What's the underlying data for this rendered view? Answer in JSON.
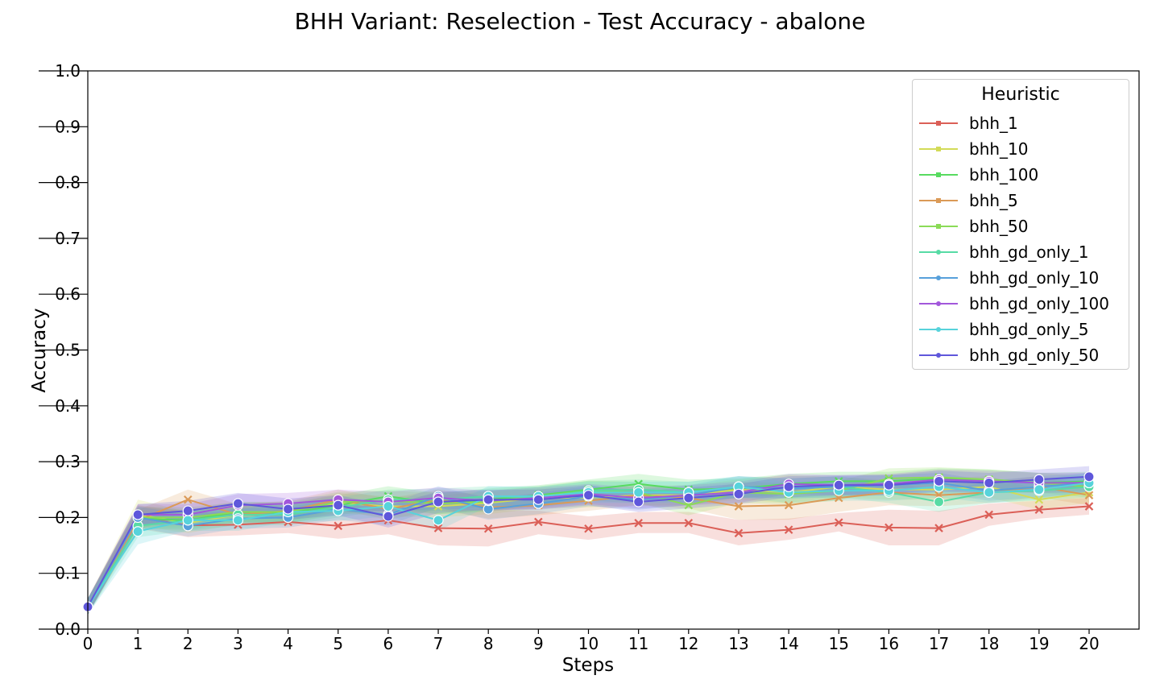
{
  "chart_data": {
    "type": "line",
    "title": "BHH Variant: Reselection - Test Accuracy - abalone",
    "xlabel": "Steps",
    "ylabel": "Accuracy",
    "xlim": [
      0,
      21
    ],
    "ylim": [
      0.0,
      1.0
    ],
    "x": [
      0,
      1,
      2,
      3,
      4,
      5,
      6,
      7,
      8,
      9,
      10,
      11,
      12,
      13,
      14,
      15,
      16,
      17,
      18,
      19,
      20
    ],
    "xticks": [
      "0",
      "1",
      "2",
      "3",
      "4",
      "5",
      "6",
      "7",
      "8",
      "9",
      "10",
      "11",
      "12",
      "13",
      "14",
      "15",
      "16",
      "17",
      "18",
      "19",
      "20"
    ],
    "yticks": [
      "0.0",
      "0.1",
      "0.2",
      "0.3",
      "0.4",
      "0.5",
      "0.6",
      "0.7",
      "0.8",
      "0.9",
      "1.0"
    ],
    "grid": false,
    "legend": {
      "title": "Heuristic",
      "position": "top-right"
    },
    "series": [
      {
        "name": "bhh_1",
        "color": "#db5f57",
        "marker": "x",
        "values": [
          0.04,
          0.2,
          0.186,
          0.187,
          0.192,
          0.185,
          0.195,
          0.181,
          0.18,
          0.192,
          0.18,
          0.19,
          0.19,
          0.172,
          0.178,
          0.191,
          0.182,
          0.181,
          0.205,
          0.214,
          0.22
        ],
        "lower": [
          0.028,
          0.18,
          0.165,
          0.168,
          0.172,
          0.162,
          0.17,
          0.15,
          0.148,
          0.17,
          0.16,
          0.172,
          0.172,
          0.15,
          0.16,
          0.175,
          0.15,
          0.15,
          0.185,
          0.198,
          0.205
        ],
        "upper": [
          0.055,
          0.222,
          0.21,
          0.208,
          0.215,
          0.21,
          0.218,
          0.214,
          0.214,
          0.212,
          0.202,
          0.21,
          0.21,
          0.196,
          0.198,
          0.208,
          0.214,
          0.212,
          0.225,
          0.23,
          0.235
        ]
      },
      {
        "name": "bhh_10",
        "color": "#d3db57",
        "marker": "x",
        "values": [
          0.04,
          0.205,
          0.19,
          0.205,
          0.205,
          0.226,
          0.22,
          0.22,
          0.226,
          0.235,
          0.235,
          0.24,
          0.24,
          0.25,
          0.245,
          0.255,
          0.25,
          0.25,
          0.255,
          0.232,
          0.245
        ],
        "lower": [
          0.026,
          0.185,
          0.172,
          0.188,
          0.188,
          0.208,
          0.202,
          0.2,
          0.206,
          0.216,
          0.218,
          0.222,
          0.222,
          0.232,
          0.226,
          0.236,
          0.232,
          0.232,
          0.236,
          0.214,
          0.226
        ],
        "upper": [
          0.055,
          0.232,
          0.21,
          0.222,
          0.222,
          0.244,
          0.238,
          0.24,
          0.246,
          0.252,
          0.252,
          0.258,
          0.258,
          0.268,
          0.276,
          0.272,
          0.268,
          0.27,
          0.274,
          0.25,
          0.264
        ]
      },
      {
        "name": "bhh_100",
        "color": "#57db5f",
        "marker": "x",
        "values": [
          0.04,
          0.198,
          0.195,
          0.21,
          0.208,
          0.222,
          0.238,
          0.225,
          0.232,
          0.24,
          0.25,
          0.26,
          0.25,
          0.252,
          0.26,
          0.265,
          0.265,
          0.27,
          0.268,
          0.262,
          0.265
        ],
        "lower": [
          0.026,
          0.18,
          0.178,
          0.192,
          0.19,
          0.204,
          0.218,
          0.206,
          0.212,
          0.222,
          0.232,
          0.242,
          0.232,
          0.234,
          0.242,
          0.248,
          0.248,
          0.252,
          0.25,
          0.244,
          0.248
        ],
        "upper": [
          0.055,
          0.218,
          0.214,
          0.228,
          0.226,
          0.24,
          0.256,
          0.244,
          0.252,
          0.258,
          0.268,
          0.278,
          0.268,
          0.27,
          0.278,
          0.282,
          0.282,
          0.288,
          0.286,
          0.28,
          0.282
        ]
      },
      {
        "name": "bhh_5",
        "color": "#db9a57",
        "marker": "x",
        "values": [
          0.04,
          0.195,
          0.232,
          0.205,
          0.212,
          0.232,
          0.215,
          0.232,
          0.218,
          0.222,
          0.23,
          0.24,
          0.235,
          0.22,
          0.222,
          0.235,
          0.245,
          0.24,
          0.245,
          0.255,
          0.24
        ],
        "lower": [
          0.026,
          0.176,
          0.212,
          0.186,
          0.194,
          0.214,
          0.196,
          0.214,
          0.198,
          0.204,
          0.212,
          0.222,
          0.216,
          0.196,
          0.196,
          0.21,
          0.222,
          0.22,
          0.226,
          0.236,
          0.222
        ],
        "upper": [
          0.055,
          0.214,
          0.25,
          0.224,
          0.23,
          0.25,
          0.234,
          0.25,
          0.238,
          0.24,
          0.248,
          0.258,
          0.254,
          0.244,
          0.25,
          0.262,
          0.268,
          0.26,
          0.264,
          0.274,
          0.258
        ]
      },
      {
        "name": "bhh_50",
        "color": "#8bdb57",
        "marker": "x",
        "values": [
          0.04,
          0.2,
          0.2,
          0.21,
          0.21,
          0.228,
          0.23,
          0.225,
          0.228,
          0.238,
          0.248,
          0.245,
          0.222,
          0.245,
          0.242,
          0.248,
          0.27,
          0.272,
          0.268,
          0.262,
          0.255
        ],
        "lower": [
          0.026,
          0.182,
          0.182,
          0.192,
          0.192,
          0.21,
          0.212,
          0.206,
          0.21,
          0.22,
          0.23,
          0.226,
          0.204,
          0.226,
          0.224,
          0.23,
          0.252,
          0.254,
          0.25,
          0.244,
          0.236
        ],
        "upper": [
          0.055,
          0.22,
          0.218,
          0.228,
          0.228,
          0.246,
          0.248,
          0.244,
          0.248,
          0.256,
          0.266,
          0.264,
          0.24,
          0.264,
          0.262,
          0.266,
          0.288,
          0.29,
          0.286,
          0.28,
          0.274
        ]
      },
      {
        "name": "bhh_gd_only_1",
        "color": "#57dba5",
        "marker": "o",
        "values": [
          0.04,
          0.185,
          0.195,
          0.205,
          0.205,
          0.218,
          0.232,
          0.232,
          0.238,
          0.236,
          0.248,
          0.25,
          0.245,
          0.255,
          0.252,
          0.255,
          0.245,
          0.228,
          0.245,
          0.248,
          0.255
        ],
        "lower": [
          0.026,
          0.165,
          0.176,
          0.186,
          0.186,
          0.2,
          0.214,
          0.212,
          0.22,
          0.218,
          0.23,
          0.232,
          0.226,
          0.236,
          0.234,
          0.236,
          0.226,
          0.21,
          0.226,
          0.23,
          0.236
        ],
        "upper": [
          0.055,
          0.205,
          0.214,
          0.224,
          0.224,
          0.236,
          0.25,
          0.252,
          0.256,
          0.254,
          0.266,
          0.268,
          0.264,
          0.274,
          0.27,
          0.274,
          0.264,
          0.248,
          0.264,
          0.266,
          0.274
        ]
      },
      {
        "name": "bhh_gd_only_10",
        "color": "#57a0db",
        "marker": "o",
        "values": [
          0.04,
          0.2,
          0.185,
          0.198,
          0.2,
          0.215,
          0.205,
          0.238,
          0.215,
          0.225,
          0.238,
          0.232,
          0.24,
          0.255,
          0.252,
          0.255,
          0.258,
          0.262,
          0.248,
          0.255,
          0.262
        ],
        "lower": [
          0.026,
          0.182,
          0.166,
          0.18,
          0.182,
          0.196,
          0.186,
          0.218,
          0.196,
          0.206,
          0.22,
          0.214,
          0.222,
          0.236,
          0.234,
          0.236,
          0.24,
          0.244,
          0.23,
          0.236,
          0.244
        ],
        "upper": [
          0.055,
          0.22,
          0.204,
          0.216,
          0.218,
          0.234,
          0.224,
          0.256,
          0.234,
          0.244,
          0.256,
          0.25,
          0.258,
          0.274,
          0.27,
          0.274,
          0.276,
          0.28,
          0.266,
          0.274,
          0.28
        ]
      },
      {
        "name": "bhh_gd_only_100",
        "color": "#a257db",
        "marker": "o",
        "values": [
          0.04,
          0.205,
          0.205,
          0.222,
          0.225,
          0.232,
          0.228,
          0.235,
          0.23,
          0.235,
          0.242,
          0.235,
          0.24,
          0.245,
          0.26,
          0.258,
          0.26,
          0.268,
          0.265,
          0.262,
          0.262
        ],
        "lower": [
          0.026,
          0.186,
          0.186,
          0.204,
          0.206,
          0.214,
          0.21,
          0.216,
          0.212,
          0.216,
          0.224,
          0.216,
          0.222,
          0.226,
          0.242,
          0.24,
          0.242,
          0.25,
          0.246,
          0.244,
          0.244
        ],
        "upper": [
          0.055,
          0.224,
          0.224,
          0.242,
          0.244,
          0.25,
          0.246,
          0.254,
          0.248,
          0.254,
          0.26,
          0.254,
          0.258,
          0.264,
          0.278,
          0.276,
          0.278,
          0.286,
          0.284,
          0.28,
          0.28
        ]
      },
      {
        "name": "bhh_gd_only_5",
        "color": "#57d3db",
        "marker": "o",
        "values": [
          0.04,
          0.175,
          0.195,
          0.195,
          0.21,
          0.212,
          0.22,
          0.195,
          0.238,
          0.238,
          0.245,
          0.245,
          0.245,
          0.255,
          0.245,
          0.248,
          0.248,
          0.255,
          0.245,
          0.25,
          0.262
        ],
        "lower": [
          0.026,
          0.152,
          0.176,
          0.176,
          0.192,
          0.194,
          0.202,
          0.176,
          0.22,
          0.22,
          0.226,
          0.226,
          0.226,
          0.236,
          0.226,
          0.23,
          0.23,
          0.236,
          0.226,
          0.232,
          0.244
        ],
        "upper": [
          0.055,
          0.198,
          0.214,
          0.214,
          0.228,
          0.23,
          0.238,
          0.214,
          0.256,
          0.256,
          0.264,
          0.264,
          0.264,
          0.274,
          0.264,
          0.266,
          0.266,
          0.274,
          0.264,
          0.268,
          0.28
        ]
      },
      {
        "name": "bhh_gd_only_50",
        "color": "#5f57db",
        "marker": "o",
        "values": [
          0.04,
          0.205,
          0.212,
          0.225,
          0.215,
          0.222,
          0.202,
          0.228,
          0.232,
          0.232,
          0.24,
          0.228,
          0.235,
          0.242,
          0.255,
          0.258,
          0.258,
          0.265,
          0.262,
          0.268,
          0.273
        ],
        "lower": [
          0.026,
          0.186,
          0.192,
          0.206,
          0.196,
          0.204,
          0.182,
          0.208,
          0.214,
          0.214,
          0.222,
          0.21,
          0.216,
          0.224,
          0.236,
          0.24,
          0.24,
          0.246,
          0.244,
          0.25,
          0.254
        ],
        "upper": [
          0.055,
          0.224,
          0.23,
          0.244,
          0.234,
          0.24,
          0.222,
          0.246,
          0.25,
          0.25,
          0.258,
          0.246,
          0.254,
          0.26,
          0.274,
          0.276,
          0.276,
          0.284,
          0.28,
          0.286,
          0.292
        ]
      }
    ]
  }
}
